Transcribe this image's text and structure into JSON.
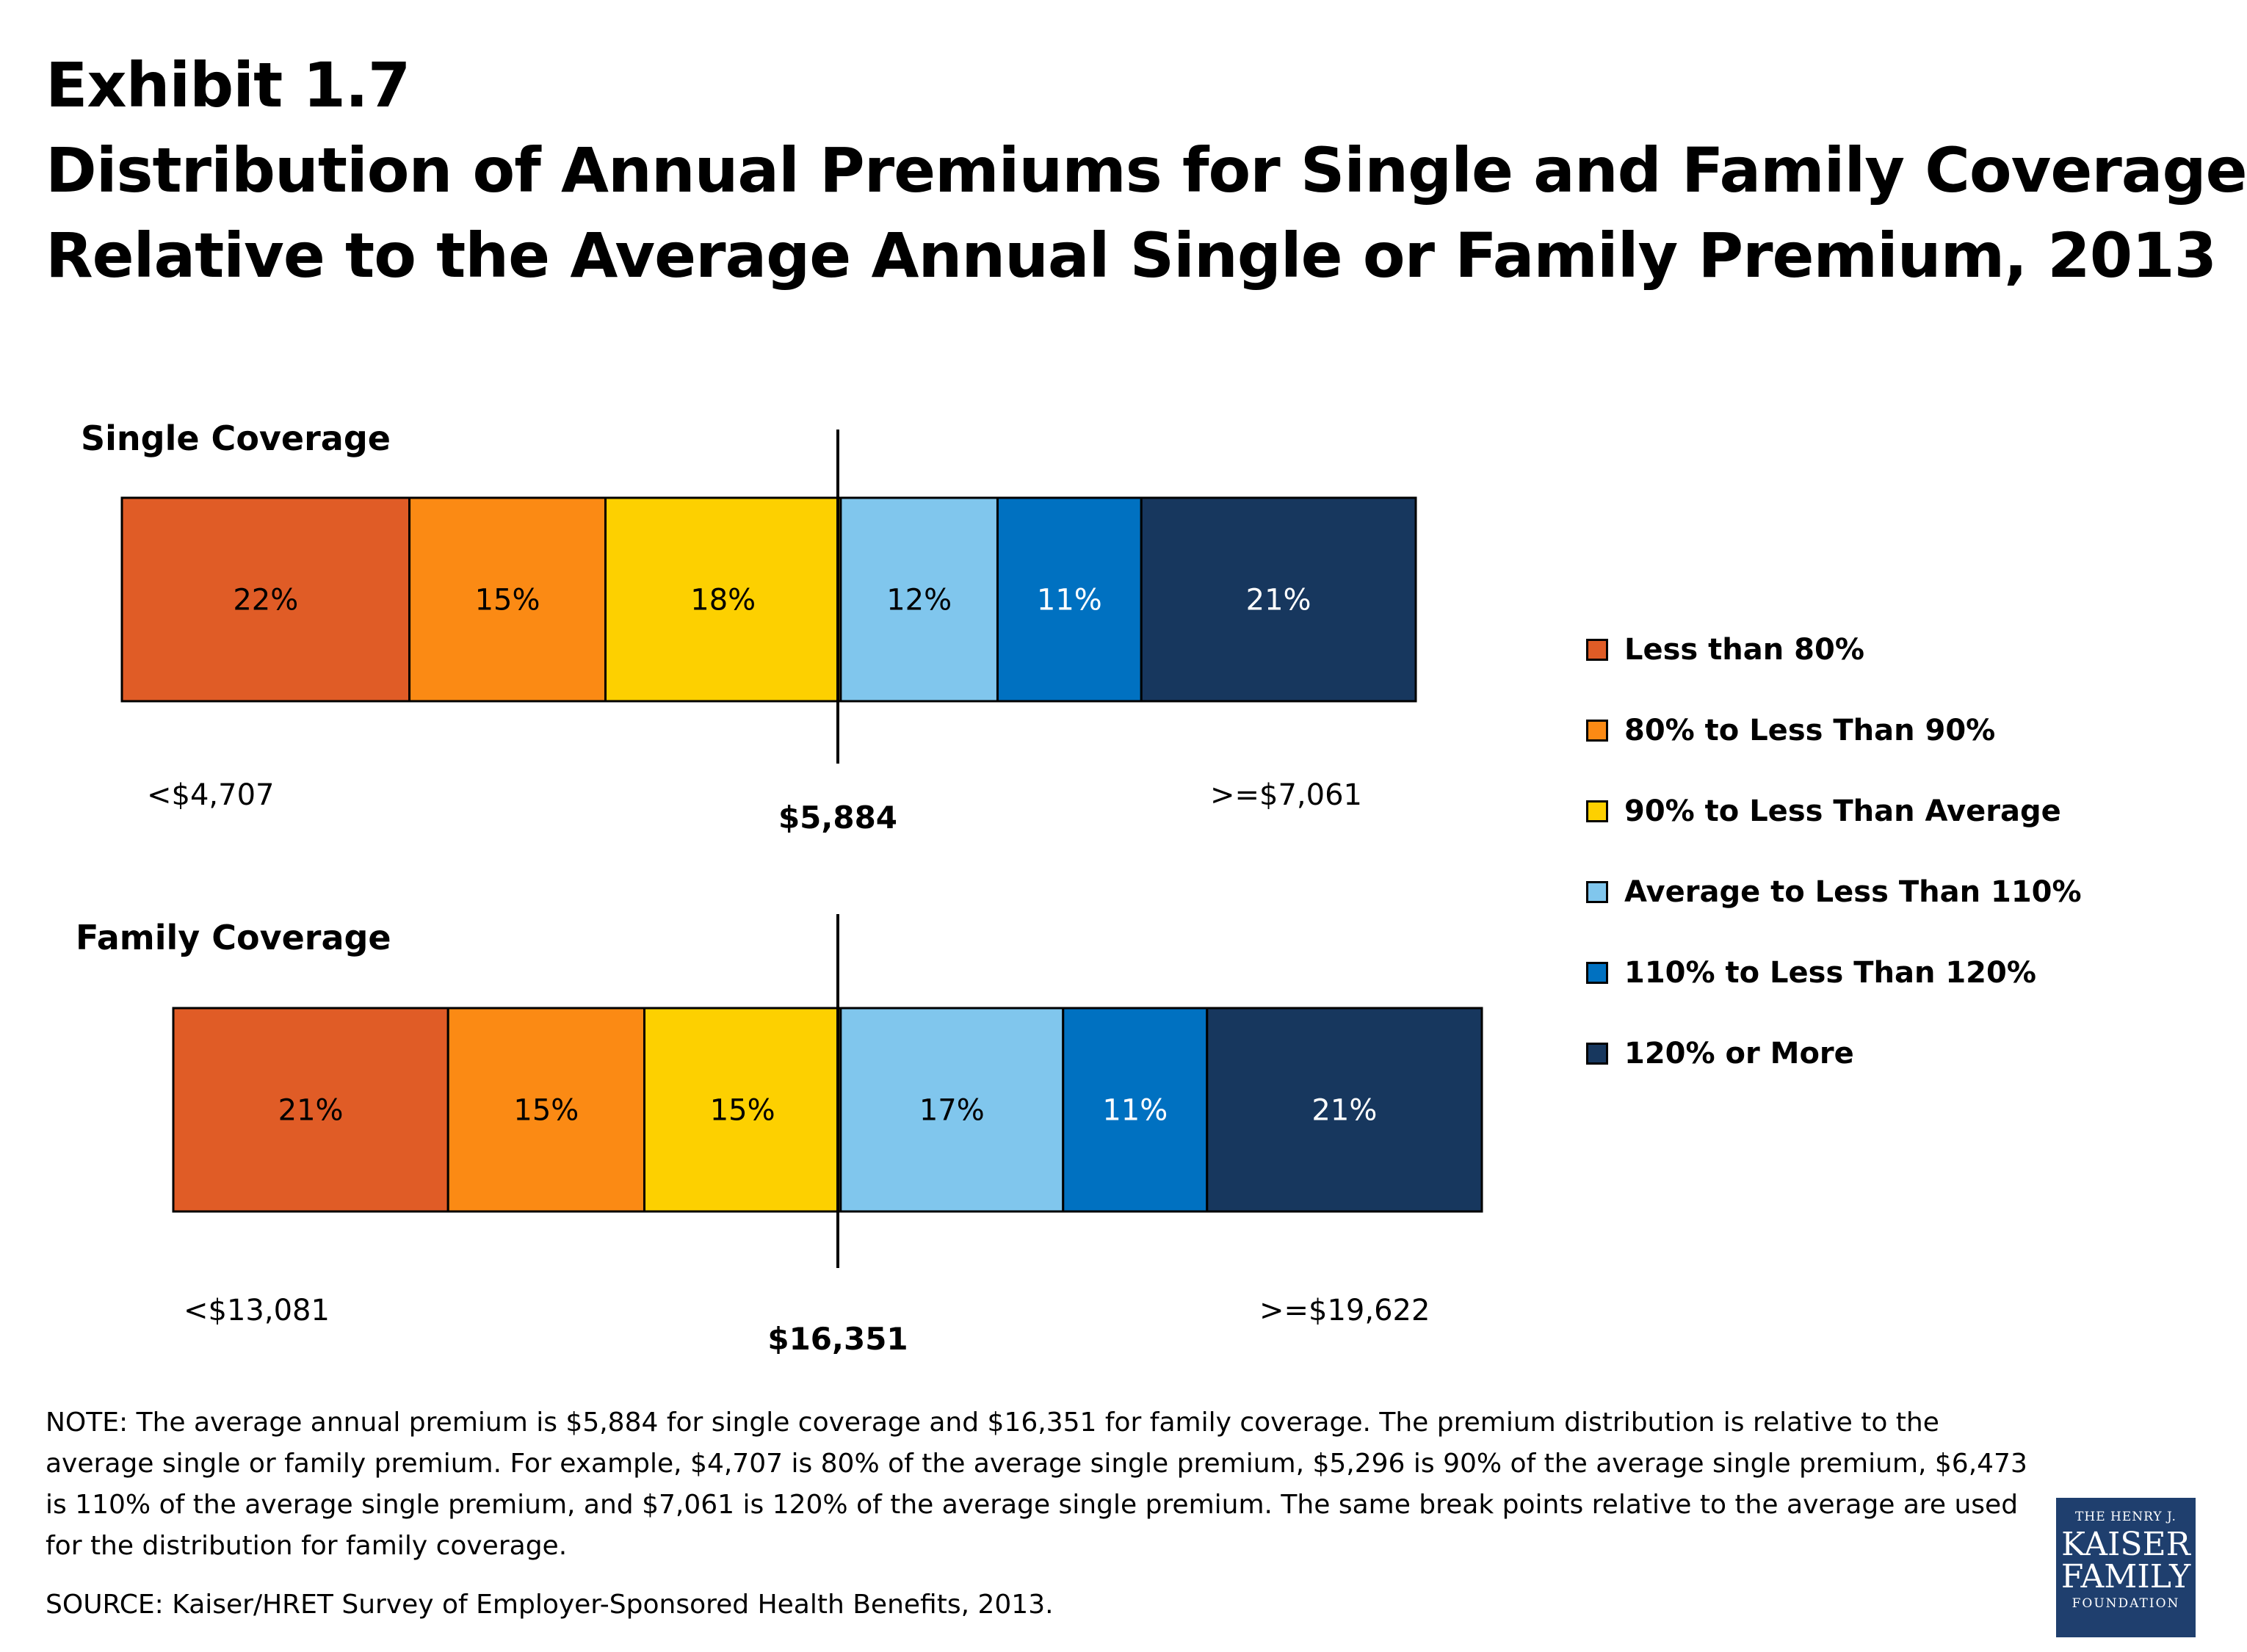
{
  "header": {
    "exhibit": "Exhibit 1.7",
    "title_line1": "Distribution of Annual Premiums for Single and Family Coverage",
    "title_line2": "Relative to the Average Annual Single or Family Premium, 2013"
  },
  "chart_data": [
    {
      "type": "bar",
      "orientation": "horizontal-stacked",
      "title": "Single Coverage",
      "categories": [
        "Less than 80%",
        "80% to Less Than 90%",
        "90% to Less Than Average",
        "Average to Less Than 110%",
        "110% to Less Than 120%",
        "120% or More"
      ],
      "values": [
        22,
        15,
        18,
        12,
        11,
        21
      ],
      "value_labels": [
        "22%",
        "15%",
        "18%",
        "12%",
        "11%",
        "21%"
      ],
      "average_label": "$5,884",
      "low_label": "<$4,707",
      "high_label": ">=$7,061"
    },
    {
      "type": "bar",
      "orientation": "horizontal-stacked",
      "title": "Family Coverage",
      "categories": [
        "Less than 80%",
        "80% to Less Than 90%",
        "90% to Less Than Average",
        "Average to Less Than 110%",
        "110% to Less Than 120%",
        "120% or More"
      ],
      "values": [
        21,
        15,
        15,
        17,
        11,
        21
      ],
      "value_labels": [
        "21%",
        "15%",
        "15%",
        "17%",
        "11%",
        "21%"
      ],
      "average_label": "$16,351",
      "low_label": "<$13,081",
      "high_label": ">=$19,622"
    }
  ],
  "legend": {
    "items": [
      {
        "label": "Less than 80%",
        "color": "#e05c26"
      },
      {
        "label": "80% to Less Than 90%",
        "color": "#fb8a14"
      },
      {
        "label": "90% to Less Than Average",
        "color": "#fdd000"
      },
      {
        "label": "Average to Less Than 110%",
        "color": "#80c6ed"
      },
      {
        "label": "110% to Less Than 120%",
        "color": "#0071c1"
      },
      {
        "label": "120% or More",
        "color": "#17375e"
      }
    ]
  },
  "segment_text_colors": [
    "#000000",
    "#000000",
    "#000000",
    "#000000",
    "#ffffff",
    "#ffffff"
  ],
  "footer": {
    "note": "NOTE: The average annual premium is $5,884 for single coverage and $16,351 for family coverage.  The premium distribution is relative to the average single or family premium.  For example, $4,707 is 80% of the average single premium, $5,296 is 90% of the average single premium, $6,473 is 110% of the average single premium, and $7,061 is 120% of the average single premium.  The same break points relative to the average are used for the distribution for family coverage.",
    "source": "SOURCE: Kaiser/HRET Survey of Employer-Sponsored Health Benefits, 2013."
  },
  "logo": {
    "line1": "THE HENRY J.",
    "line2": "KAISER",
    "line3": "FAMILY",
    "line4": "FOUNDATION"
  }
}
